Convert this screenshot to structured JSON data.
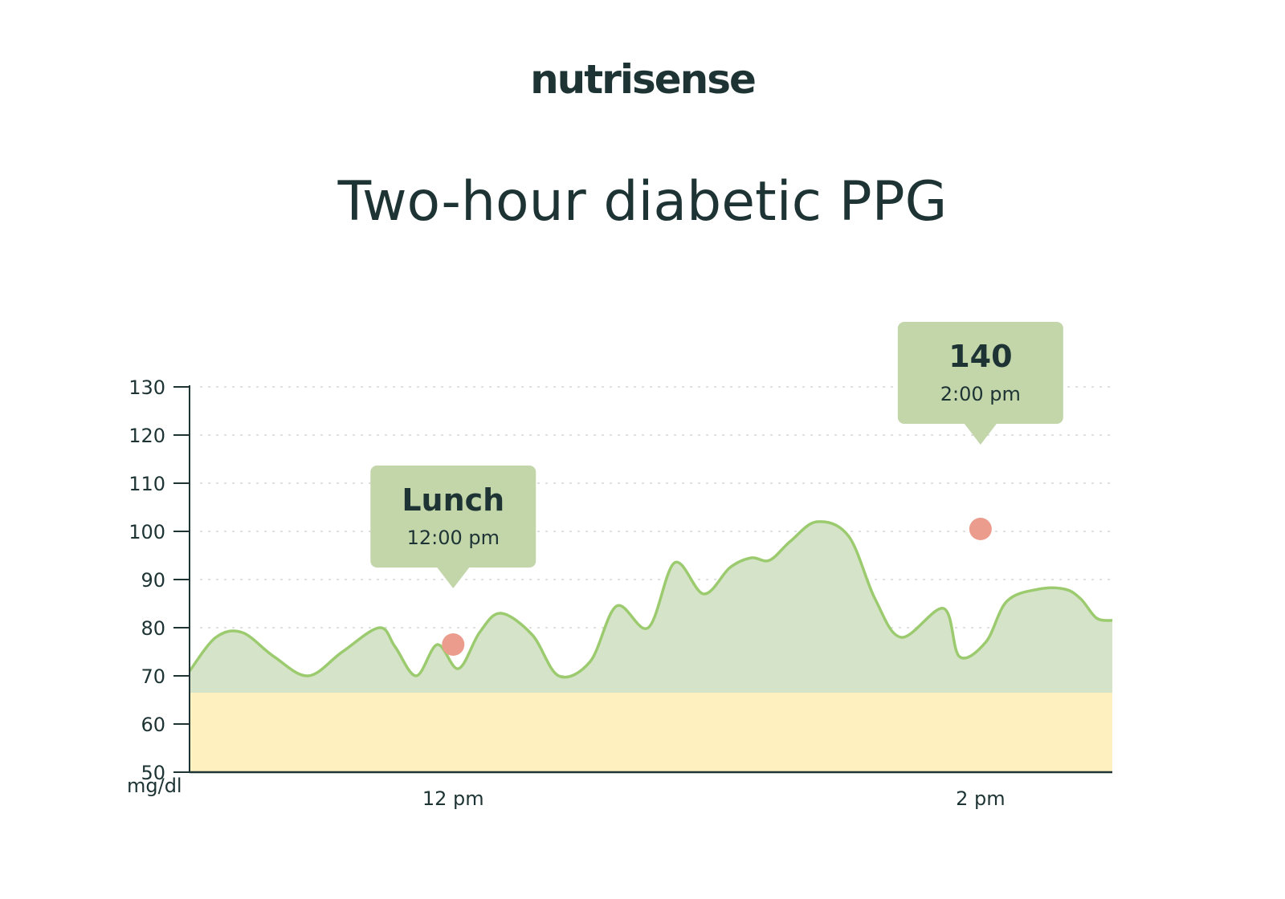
{
  "brand": {
    "logo_text": "nutrisense"
  },
  "chart_data": {
    "type": "area",
    "title": "Two-hour diabetic PPG",
    "ylabel": "mg/dl",
    "xlabel": "",
    "ylim": [
      50,
      130
    ],
    "yticks": [
      50,
      60,
      70,
      80,
      90,
      100,
      110,
      120,
      130
    ],
    "xlim": [
      11.0,
      14.5
    ],
    "xticks": [
      {
        "x": 12.0,
        "label": "12 pm"
      },
      {
        "x": 14.0,
        "label": "2 pm"
      }
    ],
    "grid": {
      "horizontal": true,
      "style": "dotted"
    },
    "bands": [
      {
        "from": 50,
        "to": 66.5,
        "color": "#fff0bf"
      }
    ],
    "series": [
      {
        "color": "#9ccb6f",
        "fill": "#d5e4c8",
        "x": [
          11.0,
          11.1,
          11.2,
          11.32,
          11.45,
          11.58,
          11.72,
          11.78,
          11.86,
          11.94,
          12.02,
          12.1,
          12.18,
          12.3,
          12.4,
          12.52,
          12.62,
          12.74,
          12.84,
          12.95,
          13.05,
          13.13,
          13.2,
          13.28,
          13.38,
          13.5,
          13.6,
          13.7,
          13.86,
          13.92,
          14.02,
          14.1,
          14.22,
          14.32,
          14.38,
          14.44,
          14.5
        ],
        "values": [
          71.0,
          78.0,
          79.0,
          74.0,
          70.0,
          75.0,
          80.0,
          76.0,
          70.0,
          76.5,
          71.5,
          79.0,
          83.0,
          78.5,
          70.0,
          73.0,
          84.5,
          80.0,
          93.5,
          87.0,
          92.5,
          94.5,
          94.0,
          98.0,
          102.0,
          99.0,
          86.0,
          78.0,
          84.0,
          74.0,
          77.0,
          85.5,
          88.0,
          88.0,
          86.0,
          82.0,
          81.5
        ]
      }
    ],
    "markers": [
      {
        "x": 12.0,
        "y": 76.5,
        "color": "#eb9c8c"
      },
      {
        "x": 14.0,
        "y": 100.5,
        "color": "#eb9c8c"
      }
    ],
    "annotations": [
      {
        "label": "Lunch",
        "sublabel": "12:00 pm",
        "x": 12.0,
        "y": 76.5
      },
      {
        "label": "140",
        "sublabel": "2:00 pm",
        "x": 14.0,
        "y": 100.5
      }
    ]
  }
}
